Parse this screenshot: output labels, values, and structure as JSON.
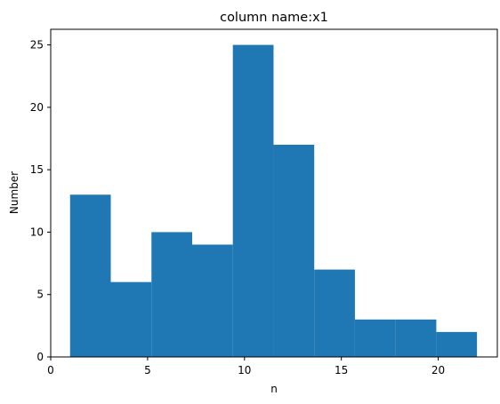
{
  "chart_data": {
    "type": "bar",
    "title": "column name:x1",
    "xlabel": "n",
    "ylabel": "Number",
    "bins": [
      {
        "start": 1.0,
        "end": 3.1,
        "count": 13
      },
      {
        "start": 3.1,
        "end": 5.2,
        "count": 6
      },
      {
        "start": 5.2,
        "end": 7.3,
        "count": 10
      },
      {
        "start": 7.3,
        "end": 9.4,
        "count": 9
      },
      {
        "start": 9.4,
        "end": 11.5,
        "count": 25
      },
      {
        "start": 11.5,
        "end": 13.6,
        "count": 17
      },
      {
        "start": 13.6,
        "end": 15.7,
        "count": 7
      },
      {
        "start": 15.7,
        "end": 17.8,
        "count": 3
      },
      {
        "start": 17.8,
        "end": 19.9,
        "count": 3
      },
      {
        "start": 19.9,
        "end": 22.0,
        "count": 2
      }
    ],
    "xlim": [
      0.0,
      23.05
    ],
    "ylim": [
      0,
      26.25
    ],
    "xticks": [
      0,
      5,
      10,
      15,
      20
    ],
    "yticks": [
      0,
      5,
      10,
      15,
      20,
      25
    ],
    "bar_color": "#1f77b4",
    "grid": false,
    "legend": "none"
  }
}
